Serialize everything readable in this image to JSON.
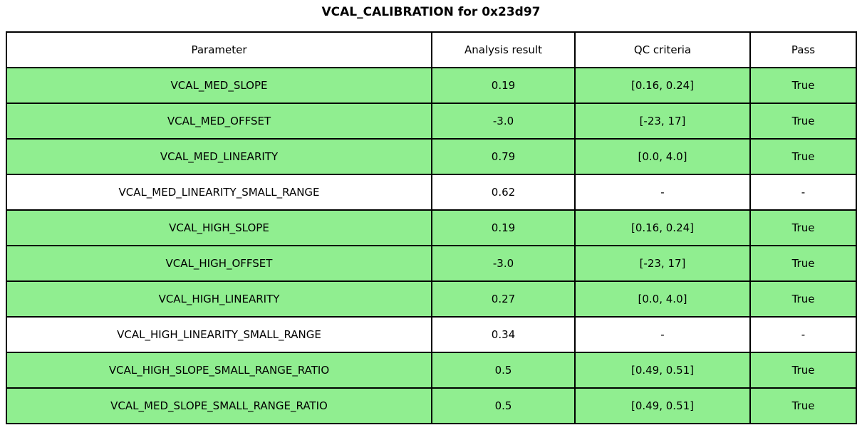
{
  "title": "VCAL_CALIBRATION for 0x23d97",
  "colors": {
    "pass_row_bg": "#90ee90",
    "default_row_bg": "#ffffff",
    "border": "#000000",
    "text": "#000000",
    "background": "#ffffff"
  },
  "chart_data": {
    "type": "table",
    "title": "VCAL_CALIBRATION for 0x23d97",
    "columns": [
      "Parameter",
      "Analysis result",
      "QC criteria",
      "Pass"
    ],
    "rows": [
      {
        "parameter": "VCAL_MED_SLOPE",
        "analysis_result": "0.19",
        "qc_criteria": "[0.16, 0.24]",
        "pass": "True",
        "highlighted": true
      },
      {
        "parameter": "VCAL_MED_OFFSET",
        "analysis_result": "-3.0",
        "qc_criteria": "[-23, 17]",
        "pass": "True",
        "highlighted": true
      },
      {
        "parameter": "VCAL_MED_LINEARITY",
        "analysis_result": "0.79",
        "qc_criteria": "[0.0, 4.0]",
        "pass": "True",
        "highlighted": true
      },
      {
        "parameter": "VCAL_MED_LINEARITY_SMALL_RANGE",
        "analysis_result": "0.62",
        "qc_criteria": "-",
        "pass": "-",
        "highlighted": false
      },
      {
        "parameter": "VCAL_HIGH_SLOPE",
        "analysis_result": "0.19",
        "qc_criteria": "[0.16, 0.24]",
        "pass": "True",
        "highlighted": true
      },
      {
        "parameter": "VCAL_HIGH_OFFSET",
        "analysis_result": "-3.0",
        "qc_criteria": "[-23, 17]",
        "pass": "True",
        "highlighted": true
      },
      {
        "parameter": "VCAL_HIGH_LINEARITY",
        "analysis_result": "0.27",
        "qc_criteria": "[0.0, 4.0]",
        "pass": "True",
        "highlighted": true
      },
      {
        "parameter": "VCAL_HIGH_LINEARITY_SMALL_RANGE",
        "analysis_result": "0.34",
        "qc_criteria": "-",
        "pass": "-",
        "highlighted": false
      },
      {
        "parameter": "VCAL_HIGH_SLOPE_SMALL_RANGE_RATIO",
        "analysis_result": "0.5",
        "qc_criteria": "[0.49, 0.51]",
        "pass": "True",
        "highlighted": true
      },
      {
        "parameter": "VCAL_MED_SLOPE_SMALL_RANGE_RATIO",
        "analysis_result": "0.5",
        "qc_criteria": "[0.49, 0.51]",
        "pass": "True",
        "highlighted": true
      }
    ]
  }
}
